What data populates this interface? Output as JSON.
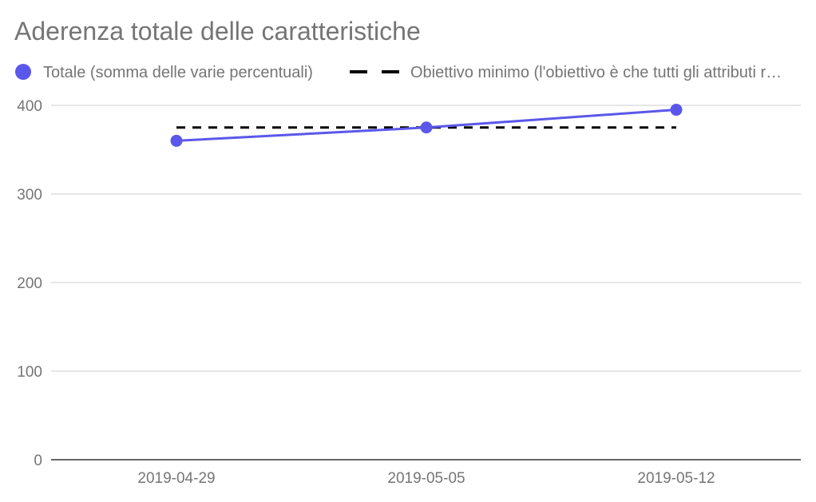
{
  "chart_data": {
    "type": "line",
    "title": "Aderenza totale delle caratteristiche",
    "xlabel": "",
    "ylabel": "",
    "categories": [
      "2019-04-29",
      "2019-05-05",
      "2019-05-12"
    ],
    "ylim": [
      0,
      400
    ],
    "yticks": [
      "0",
      "100",
      "200",
      "300",
      "400"
    ],
    "grid": true,
    "legend_position": "top-left",
    "series": [
      {
        "name": "Totale (somma delle varie percentuali)",
        "values": [
          360,
          375,
          395
        ],
        "color": "#5b57ea",
        "style": "solid",
        "markers": true
      },
      {
        "name": "Obiettivo minimo (l'obiettivo è che tutti gli attributi r…",
        "values": [
          375,
          375,
          375
        ],
        "color": "#000000",
        "style": "dashed",
        "markers": false
      }
    ]
  }
}
